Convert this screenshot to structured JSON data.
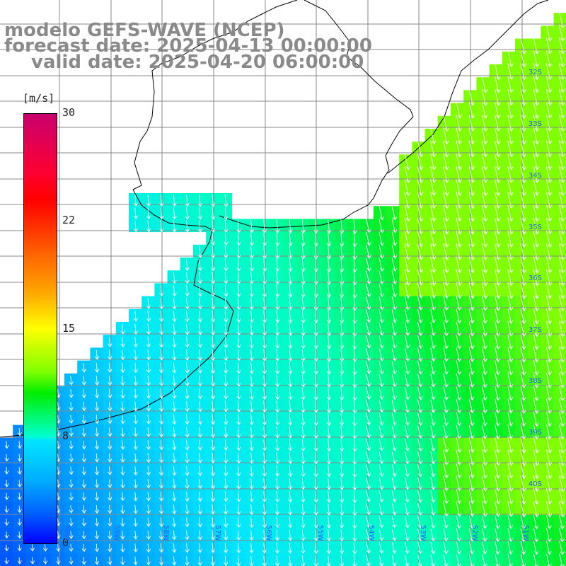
{
  "title": {
    "line1": "modelo GEFS-WAVE (NCEP)",
    "line2": "forecast date: 2025-04-13 00:00:00",
    "line3": "valid date: 2025-04-20 06:00:00"
  },
  "colorbar": {
    "unit": "[m/s]",
    "ticks": [
      "30",
      "22",
      "15",
      "8",
      "0"
    ]
  },
  "lon_labels": [
    "60W",
    "59W",
    "58W",
    "57W",
    "56W",
    "55W",
    "54W",
    "53W",
    "52W",
    "51W"
  ],
  "lat_labels": [
    "32S",
    "33S",
    "34S",
    "35S",
    "36S",
    "37S",
    "38S",
    "39S",
    "40S"
  ],
  "colors": {
    "land": "#ffffff",
    "coast": "#000000",
    "grid": "#808080",
    "arrows": "#ffffff"
  }
}
